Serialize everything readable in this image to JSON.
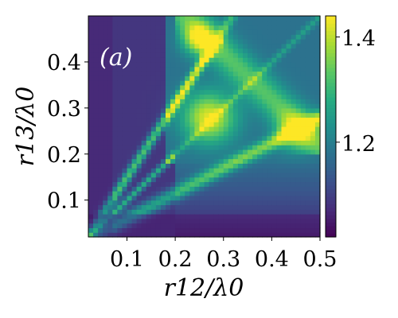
{
  "chart_data": {
    "type": "heatmap",
    "panel_label": "(a)",
    "xlabel": "r12/λ0",
    "ylabel": "r13/λ0",
    "xlim": [
      0.02,
      0.5
    ],
    "ylim": [
      0.02,
      0.5
    ],
    "x_ticks": [
      0.1,
      0.2,
      0.3,
      0.4,
      0.5
    ],
    "x_tick_labels": [
      "0.1",
      "0.2",
      "0.3",
      "0.4",
      "0.5"
    ],
    "y_ticks": [
      0.1,
      0.2,
      0.3,
      0.4
    ],
    "y_tick_labels": [
      "0.1",
      "0.2",
      "0.3",
      "0.4"
    ],
    "colormap": "viridis",
    "colorbar": {
      "vmin": 1.02,
      "vmax": 1.44,
      "ticks": [
        1.2,
        1.4
      ],
      "tick_labels": [
        "1.2",
        "1.4"
      ]
    }
  }
}
